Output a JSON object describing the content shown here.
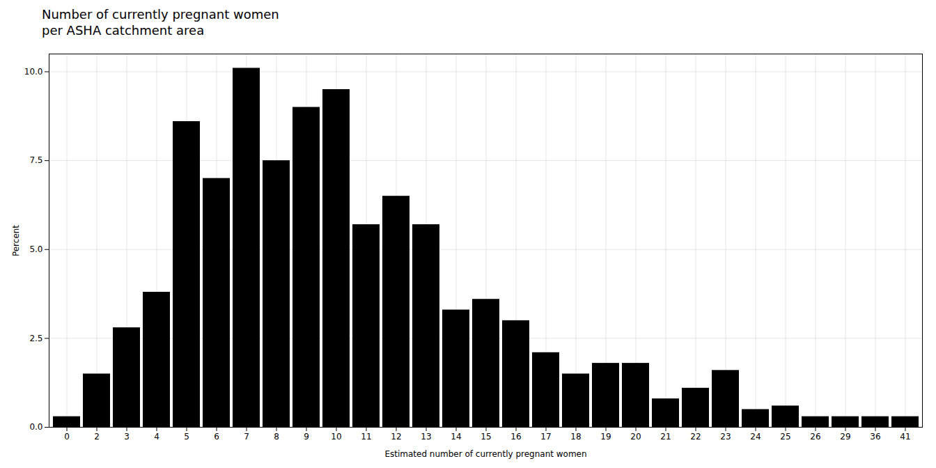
{
  "chart_data": {
    "type": "bar",
    "title": "Number of currently pregnant women\nper ASHA catchment area",
    "xlabel": "Estimated number of currently pregnant women",
    "ylabel": "Percent",
    "categories": [
      0,
      2,
      3,
      4,
      5,
      6,
      7,
      8,
      9,
      10,
      11,
      12,
      13,
      14,
      15,
      16,
      17,
      18,
      19,
      20,
      21,
      22,
      23,
      24,
      25,
      26,
      29,
      36,
      41
    ],
    "values": [
      0.3,
      1.5,
      2.8,
      3.8,
      8.6,
      7.0,
      10.1,
      7.5,
      9.0,
      9.5,
      5.7,
      6.5,
      5.7,
      3.3,
      3.6,
      3.0,
      2.1,
      1.5,
      1.8,
      1.8,
      0.8,
      1.1,
      1.6,
      0.5,
      0.6,
      0.3,
      0.3,
      0.3,
      0.3
    ],
    "ylim": [
      0,
      10.5
    ],
    "yticks": [
      {
        "value": 0,
        "label": "0.0"
      },
      2.5,
      {
        "value": 5,
        "label": "5.0"
      },
      7.5,
      {
        "value": 10,
        "label": "10.0"
      }
    ],
    "grid": true
  }
}
